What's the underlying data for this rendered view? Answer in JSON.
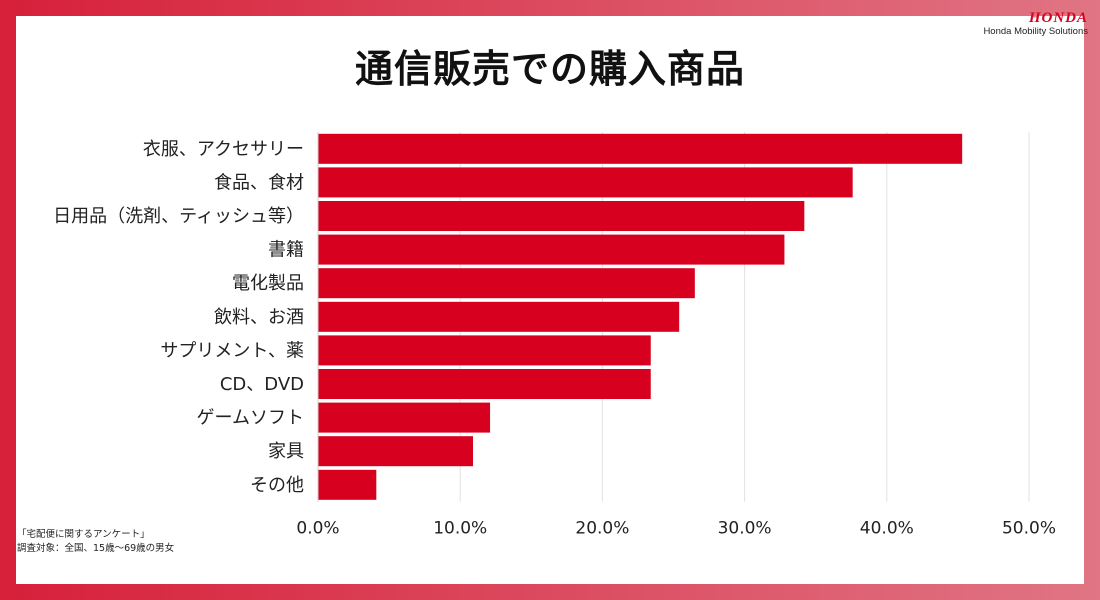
{
  "brand": {
    "logo": "HONDA",
    "sub": "Honda Mobility Solutions"
  },
  "colors": {
    "bar": "#d7001e",
    "frame": "#d7203a",
    "grid": "#e2e2e2"
  },
  "chart_data": {
    "type": "bar",
    "orientation": "horizontal",
    "title": "通信販売での購入商品",
    "categories": [
      "衣服、アクセサリー",
      "食品、食材",
      "日用品（洗剤、ティッシュ等）",
      "書籍",
      "電化製品",
      "飲料、お酒",
      "サプリメント、薬",
      "CD、DVD",
      "ゲームソフト",
      "家具",
      "その他"
    ],
    "values": [
      45.3,
      37.6,
      34.2,
      32.8,
      26.5,
      25.4,
      23.4,
      23.4,
      12.1,
      10.9,
      4.1
    ],
    "xlim": [
      0,
      50
    ],
    "xticks": [
      "0.0%",
      "10.0%",
      "20.0%",
      "30.0%",
      "40.0%",
      "50.0%"
    ],
    "grid": true,
    "legend": "none"
  },
  "notes": {
    "source": "「宅配便に関するアンケート」",
    "target": "調査対象：全国、15歳〜69歳の男女"
  }
}
